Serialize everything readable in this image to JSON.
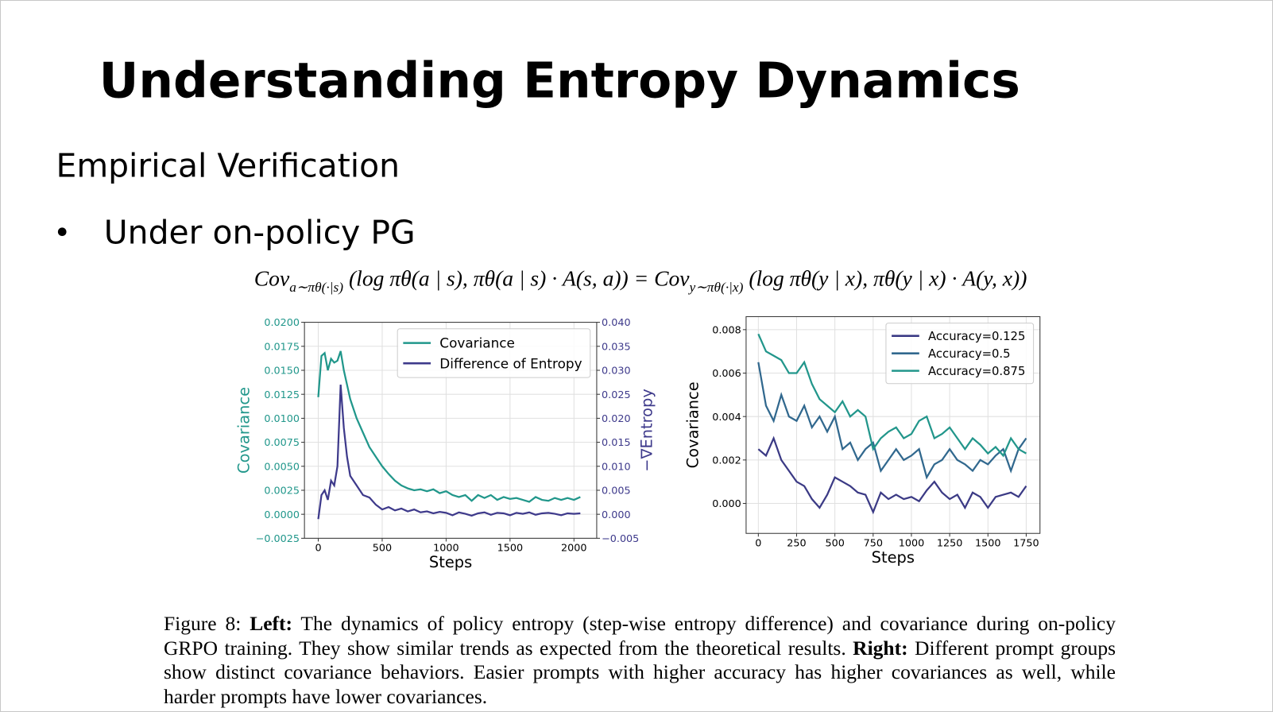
{
  "title": "Understanding Entropy Dynamics",
  "subtitle": "Empirical Verification",
  "bullet": "Under on-policy PG",
  "equation": [
    "Cov",
    "a∼πθ(·|s)",
    " (log πθ(a | s), πθ(a | s) · A(s, a)) = Cov",
    "y∼πθ(·|x)",
    " (log πθ(y | x), πθ(y | x) · A(y, x))"
  ],
  "caption": {
    "label": "Figure 8: ",
    "left_head": "Left:",
    "left_text": " The dynamics of policy entropy (step-wise entropy difference) and covariance during on-policy GRPO training. They show similar trends as expected from the theoretical results. ",
    "right_head": "Right:",
    "right_text": " Different prompt groups show distinct covariance behaviors. Easier prompts with higher accuracy has higher covariances as well, while harder prompts have lower covariances."
  },
  "chart_data": [
    {
      "type": "line",
      "x_label": "Steps",
      "y_label": "Covariance",
      "y2_label": "−∇Entropy",
      "x": [
        0,
        25,
        50,
        75,
        100,
        125,
        150,
        175,
        200,
        225,
        250,
        300,
        350,
        400,
        450,
        500,
        550,
        600,
        650,
        700,
        750,
        800,
        850,
        900,
        950,
        1000,
        1050,
        1100,
        1150,
        1200,
        1250,
        1300,
        1350,
        1400,
        1450,
        1500,
        1550,
        1600,
        1650,
        1700,
        1750,
        1800,
        1850,
        1900,
        1950,
        2000,
        2050
      ],
      "series": [
        {
          "name": "Covariance",
          "color": "#21978b",
          "values": [
            0.0122,
            0.0165,
            0.0168,
            0.015,
            0.0162,
            0.0158,
            0.016,
            0.017,
            0.015,
            0.0135,
            0.012,
            0.01,
            0.0085,
            0.007,
            0.006,
            0.005,
            0.0042,
            0.0035,
            0.003,
            0.0027,
            0.0025,
            0.0026,
            0.0024,
            0.0026,
            0.0022,
            0.0024,
            0.002,
            0.0018,
            0.002,
            0.0014,
            0.002,
            0.0017,
            0.002,
            0.0015,
            0.0018,
            0.0016,
            0.0017,
            0.0015,
            0.0013,
            0.0018,
            0.0015,
            0.0014,
            0.0017,
            0.0015,
            0.0017,
            0.0015,
            0.0018
          ]
        },
        {
          "name": "Difference of Entropy",
          "color": "#3e3a8b",
          "axis": "y2",
          "values": [
            -0.001,
            0.004,
            0.005,
            0.003,
            0.007,
            0.006,
            0.01,
            0.027,
            0.018,
            0.012,
            0.008,
            0.006,
            0.004,
            0.0035,
            0.002,
            0.001,
            0.0015,
            0.0008,
            0.0012,
            0.0006,
            0.001,
            0.0004,
            0.0006,
            0.0002,
            0.0005,
            0.0003,
            -0.0002,
            0.0004,
            0.0001,
            -0.0003,
            0.0002,
            0.0004,
            -0.0001,
            0.0003,
            0.0002,
            -0.0002,
            0.0003,
            0.0001,
            0.0004,
            -0.0001,
            0.0002,
            0.0003,
            0.0001,
            -0.0002,
            0.0002,
            0.0001,
            0.0002
          ]
        }
      ],
      "xlim": [
        -108,
        2178
      ],
      "xticks": [
        0,
        500,
        1000,
        1500,
        2000
      ],
      "ylim": [
        -0.0025,
        0.02
      ],
      "yticks": [
        {
          "value": -0.0025,
          "label": "−0.0025"
        },
        {
          "value": 0,
          "label": "0.0000"
        },
        0.0025,
        {
          "value": 0.005,
          "label": "0.0050"
        },
        0.0075,
        {
          "value": 0.01,
          "label": "0.0100"
        },
        0.0125,
        {
          "value": 0.015,
          "label": "0.0150"
        },
        0.0175,
        {
          "value": 0.02,
          "label": "0.0200"
        }
      ],
      "y2lim": [
        -0.005,
        0.04
      ],
      "y2ticks": [
        {
          "value": -0.005,
          "label": "−0.005"
        },
        {
          "value": 0,
          "label": "0.000"
        },
        0.005,
        {
          "value": 0.01,
          "label": "0.010"
        },
        0.015,
        {
          "value": 0.02,
          "label": "0.020"
        },
        0.025,
        {
          "value": 0.03,
          "label": "0.030"
        },
        0.035,
        {
          "value": 0.04,
          "label": "0.040"
        }
      ],
      "grid": true,
      "legend": "upper right"
    },
    {
      "type": "line",
      "x_label": "Steps",
      "y_label": "Covariance",
      "x": [
        0,
        50,
        100,
        150,
        200,
        250,
        300,
        350,
        400,
        450,
        500,
        550,
        600,
        650,
        700,
        750,
        800,
        850,
        900,
        950,
        1000,
        1050,
        1100,
        1150,
        1200,
        1250,
        1300,
        1350,
        1400,
        1450,
        1500,
        1550,
        1600,
        1650,
        1700,
        1750
      ],
      "series": [
        {
          "name": "Accuracy=0.125",
          "color": "#3b3a85",
          "values": [
            0.0025,
            0.0022,
            0.003,
            0.002,
            0.0015,
            0.001,
            0.0008,
            0.0002,
            -0.0002,
            0.0004,
            0.0012,
            0.001,
            0.0008,
            0.0005,
            0.0004,
            -0.0004,
            0.0005,
            0.0002,
            0.0004,
            0.0002,
            0.0003,
            0.0001,
            0.0006,
            0.001,
            0.0005,
            0.0002,
            0.0004,
            -0.0002,
            0.0005,
            0.0003,
            -0.0002,
            0.0003,
            0.0004,
            0.0005,
            0.0003,
            0.0008
          ]
        },
        {
          "name": "Accuracy=0.5",
          "color": "#31688e",
          "values": [
            0.0065,
            0.0045,
            0.0038,
            0.005,
            0.004,
            0.0038,
            0.0045,
            0.0035,
            0.004,
            0.0033,
            0.004,
            0.0025,
            0.0028,
            0.002,
            0.0025,
            0.0028,
            0.0015,
            0.002,
            0.0025,
            0.002,
            0.0022,
            0.0025,
            0.0012,
            0.0018,
            0.002,
            0.0025,
            0.002,
            0.0018,
            0.0015,
            0.002,
            0.0018,
            0.0022,
            0.0025,
            0.0015,
            0.0025,
            0.003
          ]
        },
        {
          "name": "Accuracy=0.875",
          "color": "#22968b",
          "values": [
            0.0078,
            0.007,
            0.0068,
            0.0066,
            0.006,
            0.006,
            0.0065,
            0.0055,
            0.0048,
            0.0045,
            0.0042,
            0.0047,
            0.004,
            0.0043,
            0.004,
            0.0025,
            0.003,
            0.0033,
            0.0035,
            0.003,
            0.0032,
            0.0038,
            0.004,
            0.003,
            0.0032,
            0.0035,
            0.003,
            0.0025,
            0.003,
            0.0027,
            0.0023,
            0.0026,
            0.0022,
            0.003,
            0.0025,
            0.0023
          ]
        }
      ],
      "xlim": [
        -80,
        1840
      ],
      "xticks": [
        0,
        250,
        500,
        750,
        1000,
        1250,
        1500,
        1750
      ],
      "ylim": [
        -0.00138,
        0.0086
      ],
      "yticks": [
        {
          "value": 0,
          "label": "0.000"
        },
        0.002,
        0.004,
        0.006,
        0.008
      ],
      "grid": true,
      "legend": "upper right"
    }
  ]
}
